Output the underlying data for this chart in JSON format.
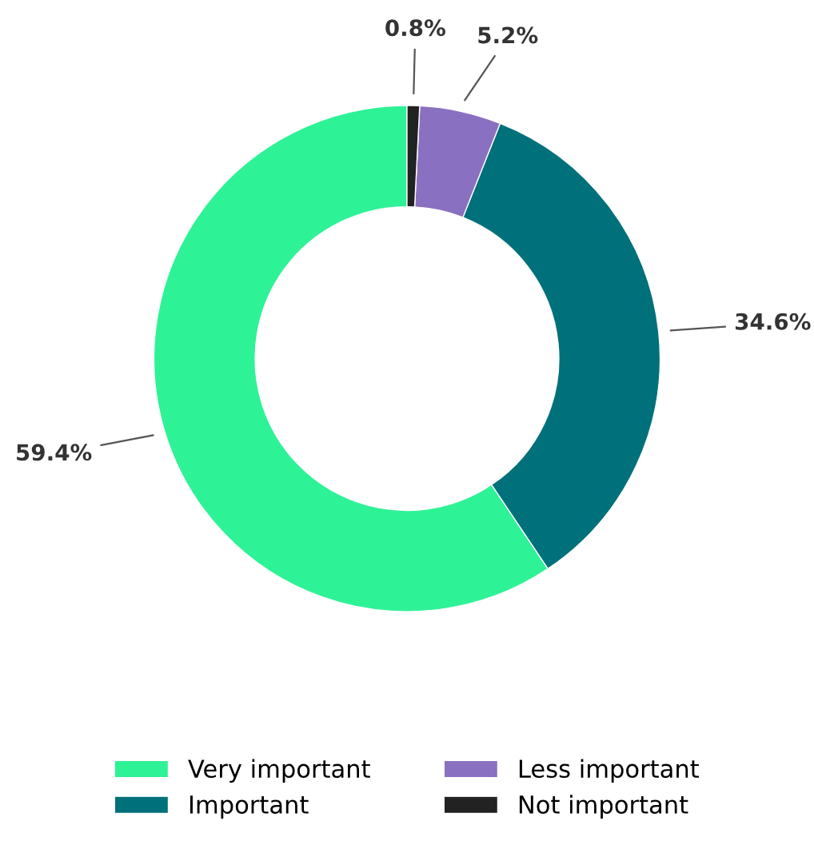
{
  "chart_data": {
    "type": "donut",
    "categories": [
      "Very important",
      "Important",
      "Less important",
      "Not important"
    ],
    "values": [
      59.4,
      34.6,
      5.2,
      0.8
    ],
    "colors": [
      "#2ef296",
      "#00707a",
      "#8a70c0",
      "#222222"
    ],
    "value_labels": [
      "59.4%",
      "34.6%",
      "5.2%",
      "0.8%"
    ],
    "legend": "bottom"
  }
}
